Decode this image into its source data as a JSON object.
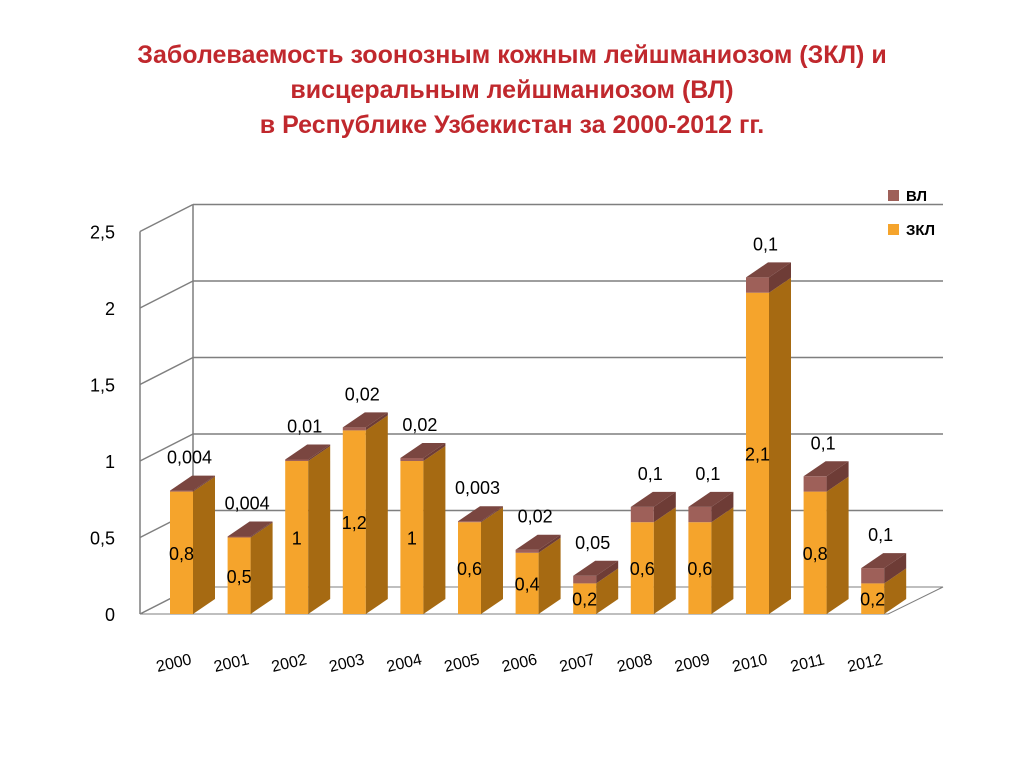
{
  "title_lines": [
    "Заболеваемость зоонозным кожным лейшманиозом (ЗКЛ) и",
    "висцеральным лейшманиозом (ВЛ)",
    "в Республике Узбекистан за 2000-2012 гг."
  ],
  "colors": {
    "title": "#c0282d",
    "zkl_front": "#f5a42c",
    "zkl_side": "#a66a12",
    "zkl_top": "#d48a1c",
    "vl_front": "#9e6059",
    "vl_side": "#6e3c36",
    "vl_top": "#7a4640",
    "gridline": "#7f7f7f",
    "text": "#000000"
  },
  "chart_data": {
    "type": "bar",
    "stacked": true,
    "three_d": true,
    "categories": [
      "2000",
      "2001",
      "2002",
      "2003",
      "2004",
      "2005",
      "2006",
      "2007",
      "2008",
      "2009",
      "2010",
      "2011",
      "2012"
    ],
    "series": [
      {
        "name": "ЗКЛ",
        "values": [
          0.8,
          0.5,
          1,
          1.2,
          1,
          0.6,
          0.4,
          0.2,
          0.6,
          0.6,
          2.1,
          0.8,
          0.2
        ],
        "labels": [
          "0,8",
          "0,5",
          "1",
          "1,2",
          "1",
          "0,6",
          "0,4",
          "0,2",
          "0,6",
          "0,6",
          "2,1",
          "0,8",
          "0,2"
        ]
      },
      {
        "name": "ВЛ",
        "values": [
          0.004,
          0.004,
          0.01,
          0.02,
          0.02,
          0.003,
          0.02,
          0.05,
          0.1,
          0.1,
          0.1,
          0.1,
          0.1
        ],
        "labels": [
          "0,004",
          "0,004",
          "0,01",
          "0,02",
          "0,02",
          "0,003",
          "0,02",
          "0,05",
          "0,1",
          "0,1",
          "0,1",
          "0,1",
          "0,1"
        ]
      }
    ],
    "ylim": [
      0,
      2.5
    ],
    "yticks": [
      0,
      0.5,
      1,
      1.5,
      2,
      2.5
    ],
    "ytick_labels": [
      "0",
      "0,5",
      "1",
      "1,5",
      "2",
      "2,5"
    ],
    "grid": true,
    "legend": {
      "position": "top-right",
      "entries": [
        "ВЛ",
        "ЗКЛ"
      ]
    }
  }
}
